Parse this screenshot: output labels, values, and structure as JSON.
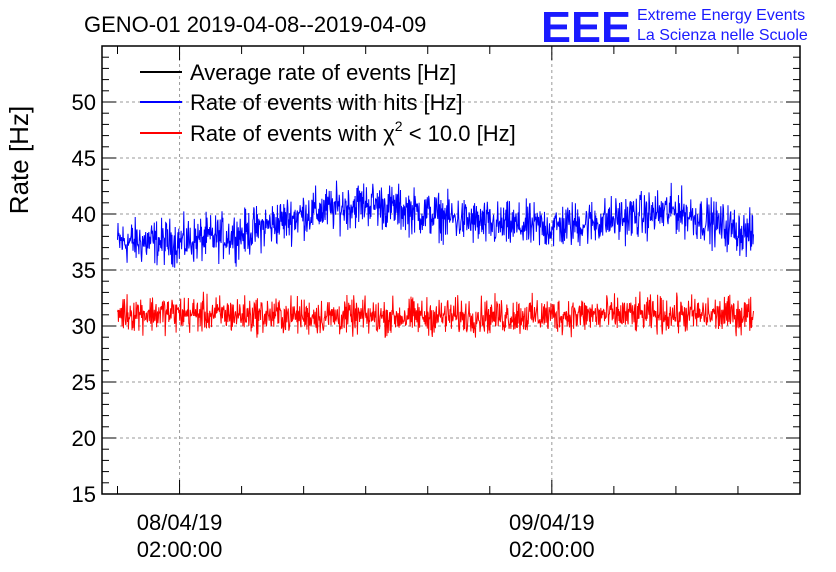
{
  "title": "GENO-01 2019-04-08--2019-04-09",
  "logo": {
    "mark": "EEE",
    "line1": "Extreme Energy Events",
    "line2": "La Scienza nelle Scuole"
  },
  "chart_data": {
    "type": "line",
    "ylabel": "Rate [Hz]",
    "ylim": [
      15,
      55
    ],
    "yticks": [
      "15",
      "20",
      "25",
      "30",
      "35",
      "40",
      "45",
      "50"
    ],
    "xlim_hours": [
      -5,
      40
    ],
    "xticks": [
      {
        "hour": 0,
        "date": "08/04/19",
        "time": "02:00:00"
      },
      {
        "hour": 24,
        "date": "09/04/19",
        "time": "02:00:00"
      }
    ],
    "data_range_hours": [
      -4,
      37
    ],
    "grid": true,
    "legend_position": "top-left",
    "legend": [
      {
        "label": "Average rate of events [Hz]",
        "color": "#000000"
      },
      {
        "label": "Rate of events with hits [Hz]",
        "color": "#0000ff"
      },
      {
        "label_prefix": "Rate of events with ",
        "symbol": "χ",
        "exponent": "2",
        "label_suffix": " < 10.0 [Hz]",
        "color": "#ff0000"
      }
    ],
    "series": [
      {
        "name": "Rate of events with hits [Hz]",
        "color": "#0000ff",
        "hours": [
          -4,
          0,
          4,
          8,
          12,
          16,
          20,
          24,
          28,
          32,
          36,
          37
        ],
        "values": [
          37.5,
          37.5,
          38.2,
          40.0,
          41.0,
          40.0,
          39.0,
          38.8,
          39.5,
          40.3,
          38.5,
          38.0
        ],
        "noise": 1.0
      },
      {
        "name": "Rate of events with χ2 < 10.0 [Hz]",
        "color": "#ff0000",
        "hours": [
          -4,
          4,
          12,
          20,
          28,
          37
        ],
        "values": [
          31.2,
          31.0,
          30.8,
          30.9,
          31.0,
          31.0
        ],
        "noise": 0.8
      }
    ]
  }
}
